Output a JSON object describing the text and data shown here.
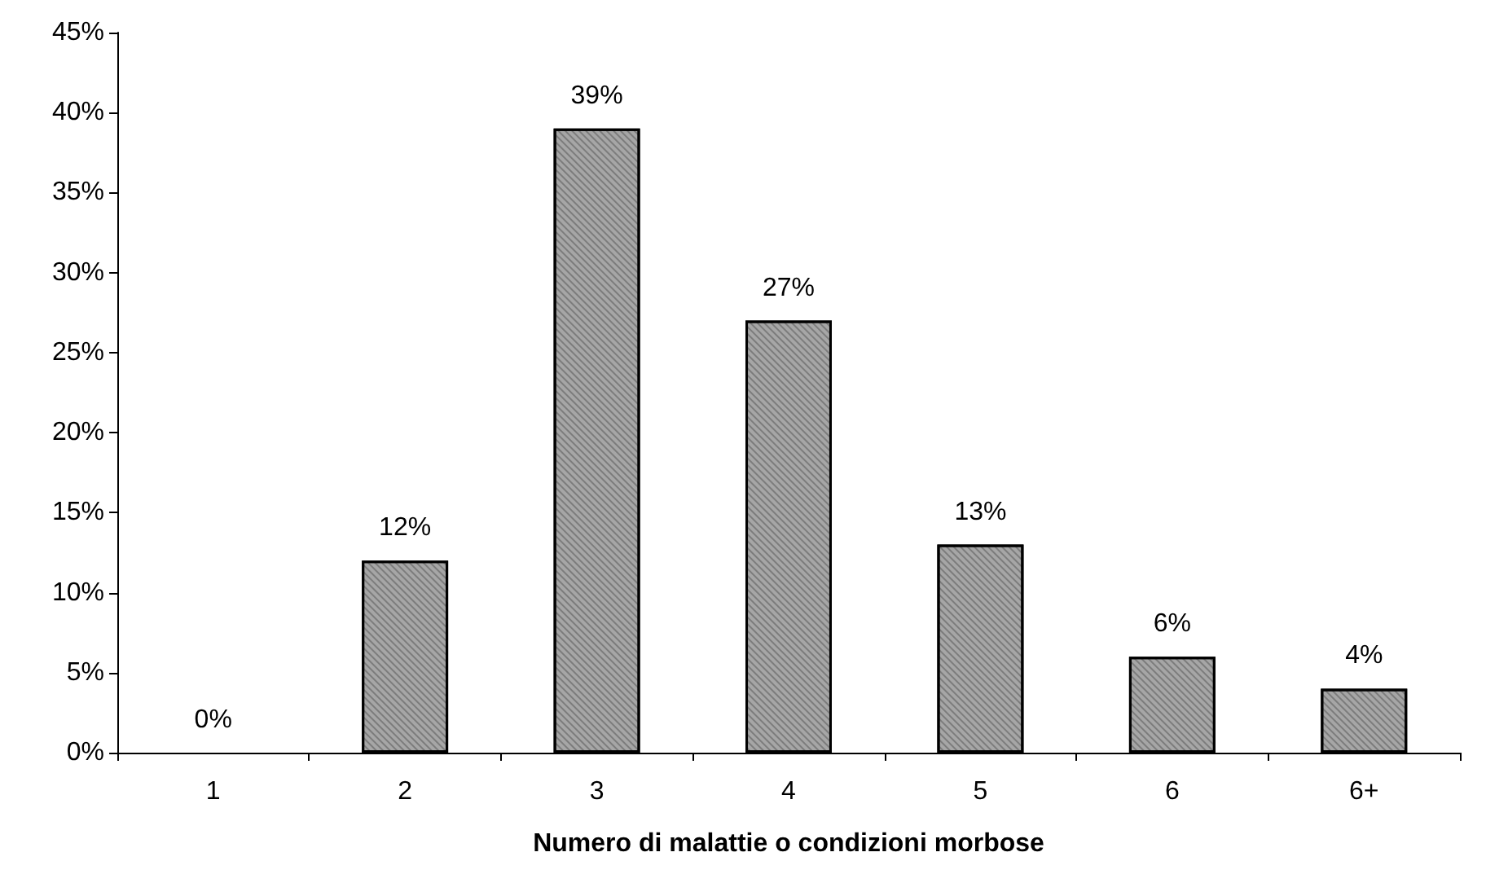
{
  "chart_data": {
    "type": "bar",
    "xlabel": "Numero di malattie o condizioni morbose",
    "categories": [
      "1",
      "2",
      "3",
      "4",
      "5",
      "6",
      "6+"
    ],
    "values": [
      0,
      12,
      39,
      27,
      13,
      6,
      4
    ],
    "value_labels": [
      "0%",
      "12%",
      "39%",
      "27%",
      "13%",
      "6%",
      "4%"
    ],
    "color": "#a6a6a6",
    "ylim": [
      0,
      45
    ],
    "yticks": [
      {
        "value": 0,
        "label": "0%"
      },
      {
        "value": 5,
        "label": "5%"
      },
      {
        "value": 10,
        "label": "10%"
      },
      {
        "value": 15,
        "label": "15%"
      },
      {
        "value": 20,
        "label": "20%"
      },
      {
        "value": 25,
        "label": "25%"
      },
      {
        "value": 30,
        "label": "30%"
      },
      {
        "value": 35,
        "label": "35%"
      },
      {
        "value": 40,
        "label": "40%"
      },
      {
        "value": 45,
        "label": "45%"
      }
    ],
    "grid": false
  }
}
